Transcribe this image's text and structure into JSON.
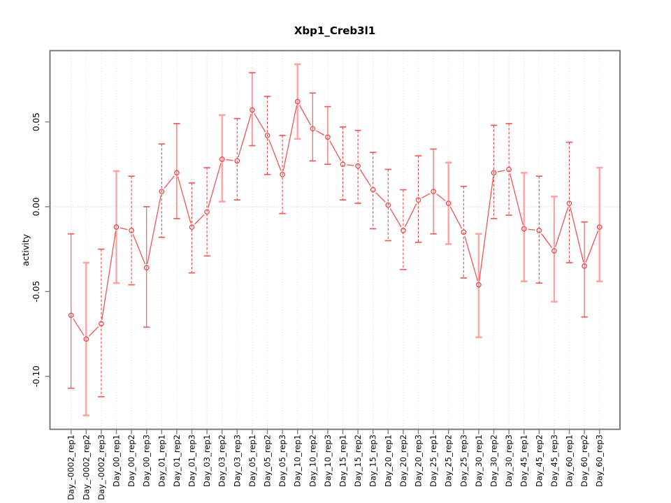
{
  "chart_data": {
    "type": "line",
    "title": "Xbp1_Creb3l1",
    "xlabel": "",
    "ylabel": "activity",
    "legend": "none",
    "ylim": [
      -0.1312,
      0.092
    ],
    "yticks": [
      0.05,
      0.0,
      -0.05,
      -0.1
    ],
    "ytick_labels": [
      "0.05",
      "0.00",
      "-0.05",
      "-0.10"
    ],
    "grid": {
      "vertical_dotted_per_category": true,
      "horizontal_dotted_at_zero": true
    },
    "categories": [
      "Day_-0002_rep1",
      "Day_-0002_rep2",
      "Day_-0002_rep3",
      "Day_00_rep1",
      "Day_00_rep2",
      "Day_00_rep3",
      "Day_01_rep1",
      "Day_01_rep2",
      "Day_01_rep3",
      "Day_03_rep1",
      "Day_03_rep2",
      "Day_03_rep3",
      "Day_05_rep1",
      "Day_05_rep2",
      "Day_05_rep3",
      "Day_10_rep1",
      "Day_10_rep2",
      "Day_10_rep3",
      "Day_15_rep1",
      "Day_15_rep2",
      "Day_15_rep3",
      "Day_20_rep1",
      "Day_20_rep2",
      "Day_20_rep3",
      "Day_25_rep1",
      "Day_25_rep2",
      "Day_25_rep3",
      "Day_30_rep1",
      "Day_30_rep2",
      "Day_30_rep3",
      "Day_45_rep1",
      "Day_45_rep2",
      "Day_45_rep3",
      "Day_60_rep1",
      "Day_60_rep2",
      "Day_60_rep3"
    ],
    "series": [
      {
        "name": "activity",
        "marker": "open-circle",
        "values": [
          -0.064,
          -0.078,
          -0.069,
          -0.012,
          -0.014,
          -0.036,
          0.009,
          0.02,
          -0.012,
          -0.003,
          0.028,
          0.027,
          0.057,
          0.042,
          0.019,
          0.062,
          0.046,
          0.041,
          0.025,
          0.024,
          0.01,
          0.001,
          -0.014,
          0.004,
          0.009,
          0.002,
          -0.015,
          -0.046,
          0.02,
          0.022,
          -0.013,
          -0.014,
          -0.026,
          0.002,
          -0.035,
          -0.012
        ],
        "err_hi": [
          -0.016,
          -0.033,
          -0.025,
          0.021,
          0.018,
          0.0,
          0.037,
          0.049,
          0.014,
          0.023,
          0.054,
          0.052,
          0.079,
          0.065,
          0.042,
          0.084,
          0.067,
          0.059,
          0.047,
          0.045,
          0.032,
          0.022,
          0.01,
          0.03,
          0.034,
          0.026,
          0.012,
          -0.016,
          0.048,
          0.049,
          0.02,
          0.018,
          0.006,
          0.038,
          -0.009,
          0.023
        ],
        "err_lo": [
          -0.107,
          -0.123,
          -0.112,
          -0.045,
          -0.046,
          -0.071,
          -0.018,
          -0.007,
          -0.039,
          -0.029,
          0.003,
          0.004,
          0.036,
          0.019,
          -0.004,
          0.04,
          0.027,
          0.025,
          0.004,
          0.002,
          -0.013,
          -0.02,
          -0.037,
          -0.021,
          -0.016,
          -0.022,
          -0.042,
          -0.077,
          -0.007,
          -0.005,
          -0.044,
          -0.045,
          -0.056,
          -0.033,
          -0.065,
          -0.044
        ],
        "err_style": [
          "solid",
          "pink",
          "dashed",
          "pink",
          "dashed",
          "solid",
          "dashed",
          "solid",
          "dashed",
          "dashed",
          "pink",
          "dashed",
          "solid",
          "dashed",
          "dashed",
          "pink",
          "solid",
          "solid",
          "dashed",
          "dashed",
          "dashed",
          "dashed",
          "dashed",
          "dashed",
          "solid",
          "pink",
          "dashed",
          "pink",
          "dashed",
          "dashed",
          "pink",
          "dashed",
          "pink",
          "dashed",
          "solid",
          "pink"
        ]
      }
    ],
    "colors": {
      "series_line": "#f25454",
      "point_stroke": "#f04848",
      "error_solid": "#f05858",
      "error_dashed": "#ef4747",
      "error_pink": "#ffa4a4",
      "cap_pink": "#ffa4a4",
      "cap_red": "#f25b5b",
      "grid": "#dcdcdc",
      "zero_line": "#cfcfcf",
      "axis_border": "#6e6e6e",
      "tick": "#808080",
      "text": "#000000",
      "background": "#ffffff"
    }
  }
}
